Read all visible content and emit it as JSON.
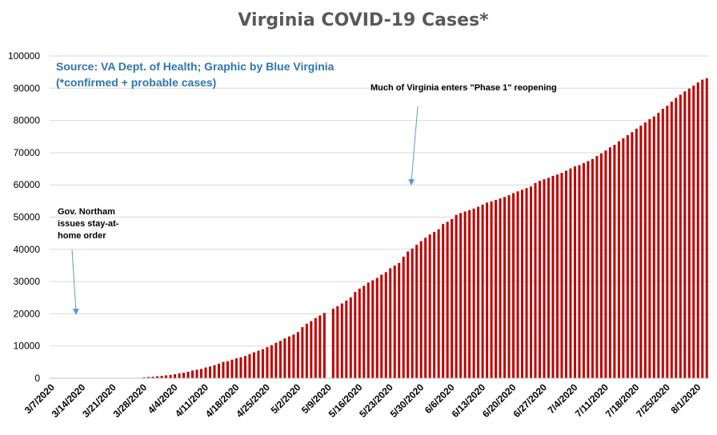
{
  "chart_data": {
    "type": "bar",
    "title": "Virginia COVID-19 Cases*",
    "source_note": "Source: VA Dept. of Health; Graphic by Blue Virginia",
    "footnote": "(*confirmed + probable cases)",
    "ylim": [
      0,
      100000
    ],
    "ytick_step": 10000,
    "yticks": [
      "0",
      "10000",
      "20000",
      "30000",
      "40000",
      "50000",
      "60000",
      "70000",
      "80000",
      "90000",
      "100000"
    ],
    "xticks": [
      "3/7/2020",
      "3/14/2020",
      "3/21/2020",
      "3/28/2020",
      "4/4/2020",
      "4/11/2020",
      "4/18/2020",
      "4/25/2020",
      "5/2/2020",
      "5/9/2020",
      "5/16/2020",
      "5/23/2020",
      "5/30/2020",
      "6/6/2020",
      "6/13/2020",
      "6/20/2020",
      "6/27/2020",
      "7/4/2020",
      "7/11/2020",
      "7/18/2020",
      "7/25/2020",
      "8/1/2020"
    ],
    "bar_color": "#C00000",
    "annotation_color": "#5B9BD5",
    "annotations": [
      {
        "id": "stay-at-home",
        "lines": [
          "Gov. Northam",
          "issues stay-at-",
          "home order"
        ]
      },
      {
        "id": "phase1",
        "lines": [
          "Much of Virginia enters \"Phase 1\" reopening"
        ]
      }
    ],
    "series": [
      {
        "values": [
          0,
          0,
          0,
          0,
          0,
          0,
          0,
          0,
          0,
          0,
          0,
          0,
          0,
          0,
          0,
          0,
          0,
          0,
          0,
          0,
          0,
          290,
          391,
          460,
          604,
          739,
          890,
          1020,
          1250,
          1484,
          1706,
          2012,
          2407,
          2637,
          2878,
          3333,
          3645,
          4042,
          4509,
          5077,
          5274,
          5747,
          6171,
          6500,
          6889,
          7491,
          8053,
          8537,
          8990,
          9630,
          10266,
          10998,
          11594,
          12366,
          12970,
          13535,
          14339,
          15846,
          16901,
          17731,
          18671,
          19492,
          20256,
          0,
          21570,
          22342,
          23196,
          24081,
          25070,
          26746,
          27813,
          28672,
          29683,
          30388,
          31140,
          32145,
          32908,
          34137,
          34950,
          35749,
          37727,
          39342,
          40249,
          41401,
          42533,
          43611,
          44607,
          45398,
          46239,
          47856,
          48532,
          49397,
          50681,
          51251,
          51738,
          52177,
          52647,
          53211,
          53869,
          54506,
          54886,
          55331,
          55775,
          56238,
          56793,
          57443,
          57994,
          58465,
          58994,
          59514,
          60570,
          61247,
          61736,
          62189,
          62787,
          63203,
          63735,
          64393,
          65109,
          65748,
          66102,
          66740,
          67375,
          67988,
          68931,
          69782,
          70670,
          71642,
          72443,
          73527,
          74431,
          75433,
          76373,
          77430,
          78375,
          79371,
          80393,
          81237,
          82364,
          83609,
          84567,
          85801,
          86994,
          87993,
          89016,
          89888,
          90801,
          91782,
          92649,
          93106
        ]
      }
    ]
  }
}
